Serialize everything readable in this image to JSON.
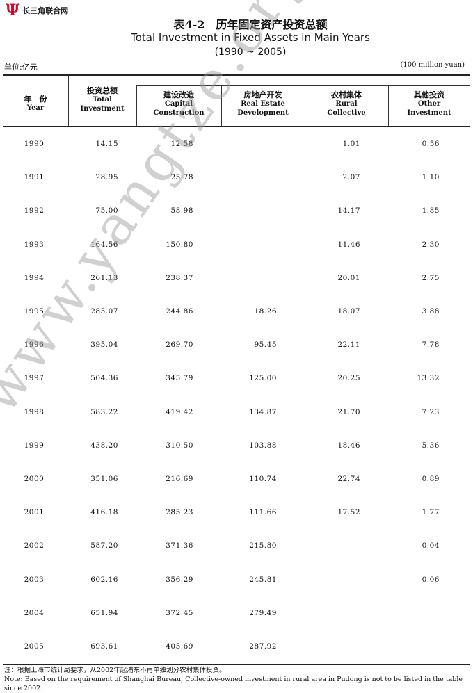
{
  "logo": {
    "text": "长三角联合网"
  },
  "title": {
    "cn": "表4-2　历年固定资产投资总额",
    "en": "Total Investment in Fixed Assets in Main Years",
    "years": "(1990 ~ 2005)"
  },
  "unit": {
    "cn": "单位:亿元",
    "en": "(100 million yuan)"
  },
  "columns": [
    {
      "cn": "年　份",
      "en1": "Year",
      "en2": ""
    },
    {
      "cn": "投资总额",
      "en1": "Total",
      "en2": "Investment"
    },
    {
      "cn": "建设改造",
      "en1": "Capital",
      "en2": "Construction"
    },
    {
      "cn": "房地产开发",
      "en1": "Real Estate",
      "en2": "Development"
    },
    {
      "cn": "农村集体",
      "en1": "Rural",
      "en2": "Collective"
    },
    {
      "cn": "其他投资",
      "en1": "Other",
      "en2": "Investment"
    }
  ],
  "rows": [
    [
      "1990",
      "14.15",
      "12.58",
      "",
      "1.01",
      "0.56"
    ],
    [
      "1991",
      "28.95",
      "25.78",
      "",
      "2.07",
      "1.10"
    ],
    [
      "1992",
      "75.00",
      "58.98",
      "",
      "14.17",
      "1.85"
    ],
    [
      "1993",
      "164.56",
      "150.80",
      "",
      "11.46",
      "2.30"
    ],
    [
      "1994",
      "261.13",
      "238.37",
      "",
      "20.01",
      "2.75"
    ],
    [
      "1995",
      "285.07",
      "244.86",
      "18.26",
      "18.07",
      "3.88"
    ],
    [
      "1996",
      "395.04",
      "269.70",
      "95.45",
      "22.11",
      "7.78"
    ],
    [
      "1997",
      "504.36",
      "345.79",
      "125.00",
      "20.25",
      "13.32"
    ],
    [
      "1998",
      "583.22",
      "419.42",
      "134.87",
      "21.70",
      "7.23"
    ],
    [
      "1999",
      "438.20",
      "310.50",
      "103.88",
      "18.46",
      "5.36"
    ],
    [
      "2000",
      "351.06",
      "216.69",
      "110.74",
      "22.74",
      "0.89"
    ],
    [
      "2001",
      "416.18",
      "285.23",
      "111.66",
      "17.52",
      "1.77"
    ],
    [
      "2002",
      "587.20",
      "371.36",
      "215.80",
      "",
      "0.04"
    ],
    [
      "2003",
      "602.16",
      "356.29",
      "245.81",
      "",
      "0.06"
    ],
    [
      "2004",
      "651.94",
      "372.45",
      "279.49",
      "",
      ""
    ],
    [
      "2005",
      "693.61",
      "405.69",
      "287.92",
      "",
      ""
    ]
  ],
  "note": {
    "cn": "注：根据上海市统计局要求，从2002年起浦东不再单独划分农村集体投资。",
    "en": "Note:  Based on the requirement of Shanghai Bureau, Collective-owned investment in rural area in Pudong is not to be listed in the table since 2002."
  },
  "watermark": "www.yangtze.org.cn",
  "colors": {
    "logo": "#c8102e"
  }
}
